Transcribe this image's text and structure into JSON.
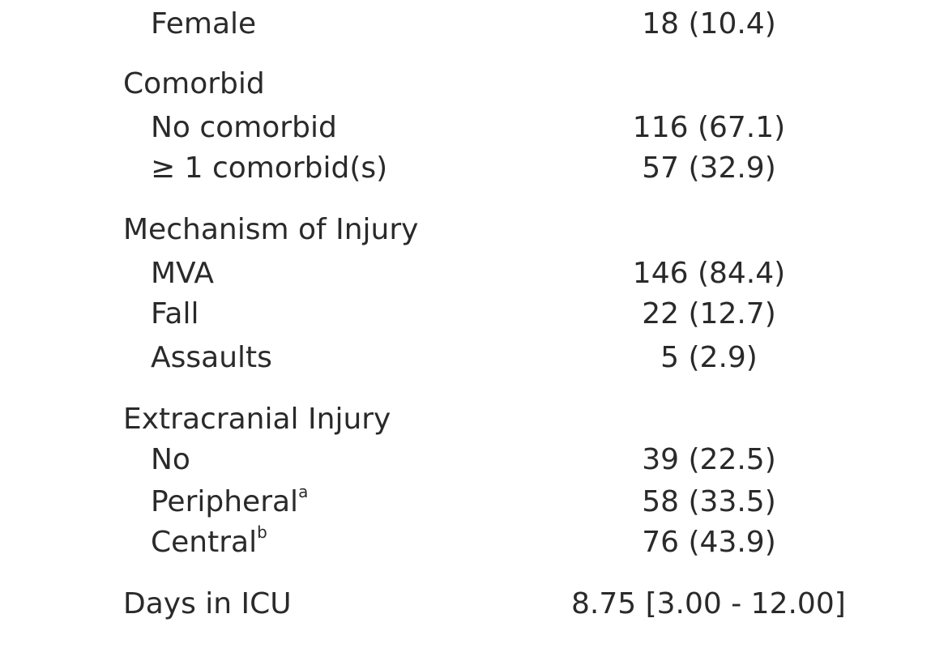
{
  "table": {
    "rows": [
      {
        "label": "Female",
        "value": "18 (10.4)"
      },
      {
        "label": "Comorbid",
        "value": ""
      },
      {
        "label": "No comorbid",
        "value": "116 (67.1)"
      },
      {
        "label": "≥ 1 comorbid(s)",
        "value": "57 (32.9)"
      },
      {
        "label": "Mechanism of Injury",
        "value": ""
      },
      {
        "label": "MVA",
        "value": "146 (84.4)"
      },
      {
        "label": "Fall",
        "value": "22 (12.7)"
      },
      {
        "label": "Assaults",
        "value": "5 (2.9)"
      },
      {
        "label": "Extracranial Injury",
        "value": ""
      },
      {
        "label": "No",
        "value": "39 (22.5)"
      },
      {
        "label": "Peripheral",
        "sup": "a",
        "value": "58 (33.5)"
      },
      {
        "label": "Central",
        "sup": "b",
        "value": "76 (43.9)"
      },
      {
        "label": "Days in ICU",
        "value": "8.75 [3.00 - 12.00]"
      }
    ]
  }
}
